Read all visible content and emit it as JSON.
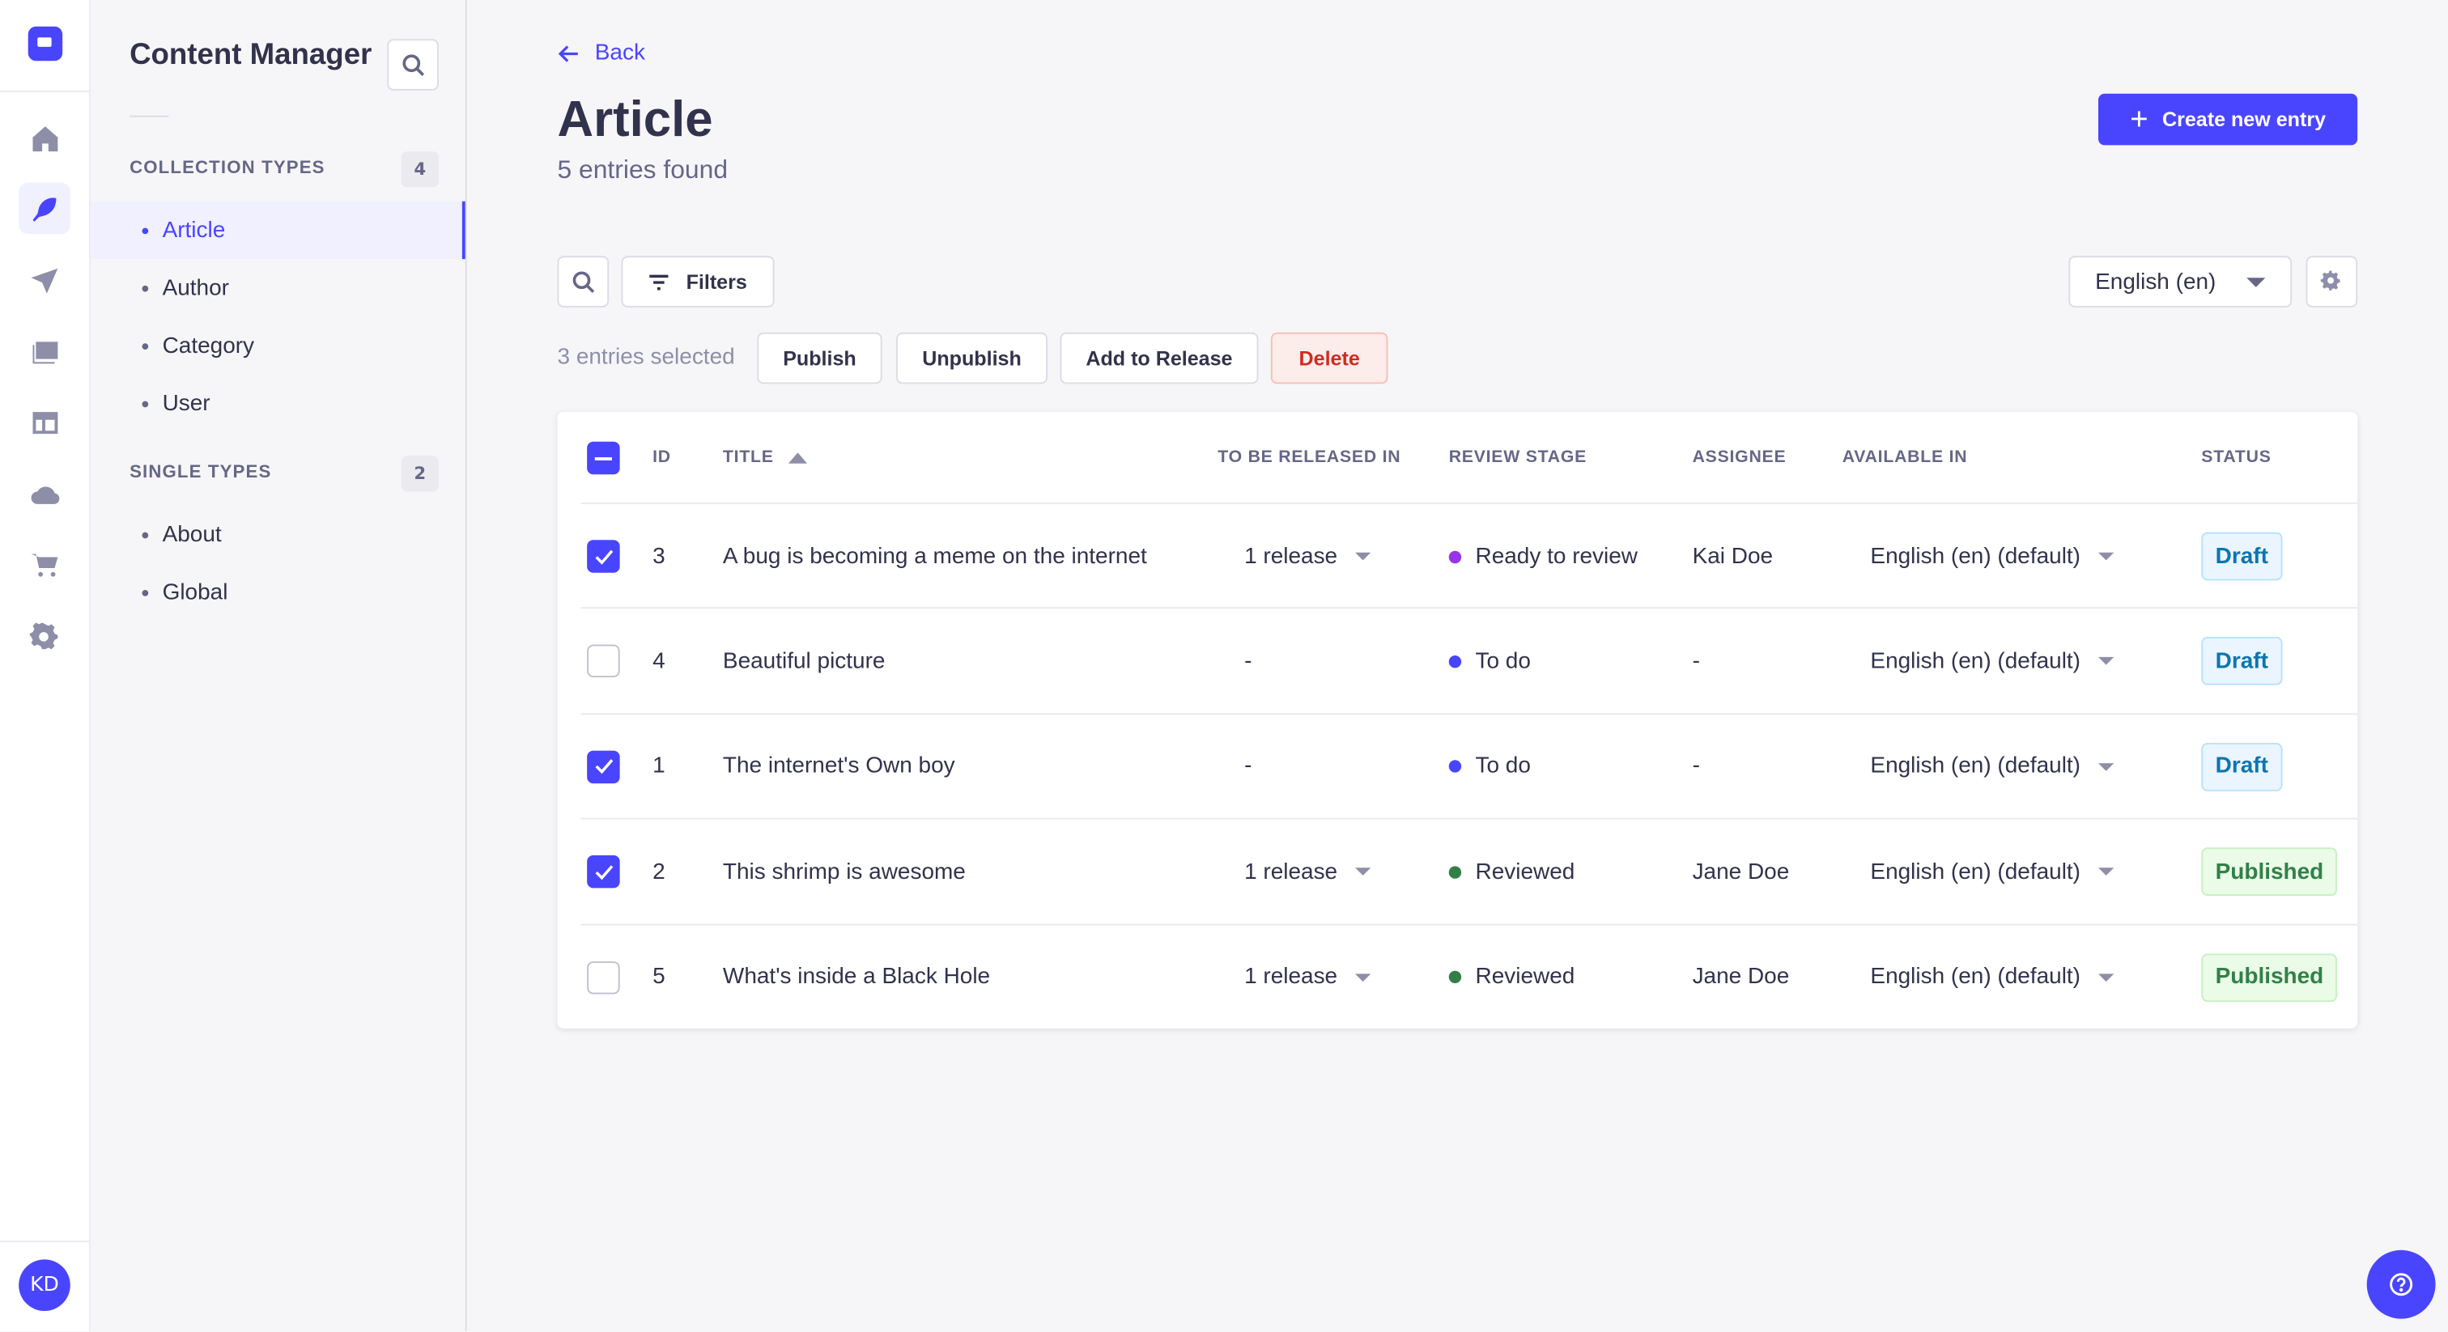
{
  "app": {
    "user_initials": "KD"
  },
  "rail": {
    "items": [
      {
        "icon": "home-icon"
      },
      {
        "icon": "feather-icon",
        "active": true
      },
      {
        "icon": "paper-plane-icon"
      },
      {
        "icon": "images-icon"
      },
      {
        "icon": "layout-icon"
      },
      {
        "icon": "cloud-icon"
      },
      {
        "icon": "cart-icon"
      },
      {
        "icon": "gear-icon"
      }
    ]
  },
  "subnav": {
    "title": "Content Manager",
    "collection": {
      "label": "COLLECTION TYPES",
      "count": "4",
      "items": [
        "Article",
        "Author",
        "Category",
        "User"
      ],
      "active": "Article"
    },
    "single": {
      "label": "SINGLE TYPES",
      "count": "2",
      "items": [
        "About",
        "Global"
      ]
    }
  },
  "header": {
    "back": "Back",
    "title": "Article",
    "subtitle": "5 entries found",
    "create": "Create new entry"
  },
  "toolbar": {
    "filters": "Filters",
    "locale": "English (en)"
  },
  "bulk": {
    "selected": "3 entries selected",
    "publish": "Publish",
    "unpublish": "Unpublish",
    "add_release": "Add to Release",
    "delete": "Delete"
  },
  "table": {
    "columns": [
      "ID",
      "TITLE",
      "TO BE RELEASED IN",
      "REVIEW STAGE",
      "ASSIGNEE",
      "AVAILABLE IN",
      "STATUS"
    ],
    "rows": [
      {
        "checked": true,
        "id": "3",
        "title": "A bug is becoming a meme on the internet",
        "release": "1 release",
        "stage": "Ready to review",
        "stage_color": "#9736e8",
        "assignee": "Kai Doe",
        "available": "English (en) (default)",
        "status": "Draft"
      },
      {
        "checked": false,
        "id": "4",
        "title": "Beautiful picture",
        "release": "-",
        "stage": "To do",
        "stage_color": "#4945ff",
        "assignee": "-",
        "available": "English (en) (default)",
        "status": "Draft"
      },
      {
        "checked": true,
        "id": "1",
        "title": "The internet's Own boy",
        "release": "-",
        "stage": "To do",
        "stage_color": "#4945ff",
        "assignee": "-",
        "available": "English (en) (default)",
        "status": "Draft"
      },
      {
        "checked": true,
        "id": "2",
        "title": "This shrimp is awesome",
        "release": "1 release",
        "stage": "Reviewed",
        "stage_color": "#328048",
        "assignee": "Jane Doe",
        "available": "English (en) (default)",
        "status": "Published"
      },
      {
        "checked": false,
        "id": "5",
        "title": "What's inside a Black Hole",
        "release": "1 release",
        "stage": "Reviewed",
        "stage_color": "#328048",
        "assignee": "Jane Doe",
        "available": "English (en) (default)",
        "status": "Published"
      }
    ]
  },
  "colors": {
    "primary": "#4945ff",
    "danger": "#d02b20"
  }
}
